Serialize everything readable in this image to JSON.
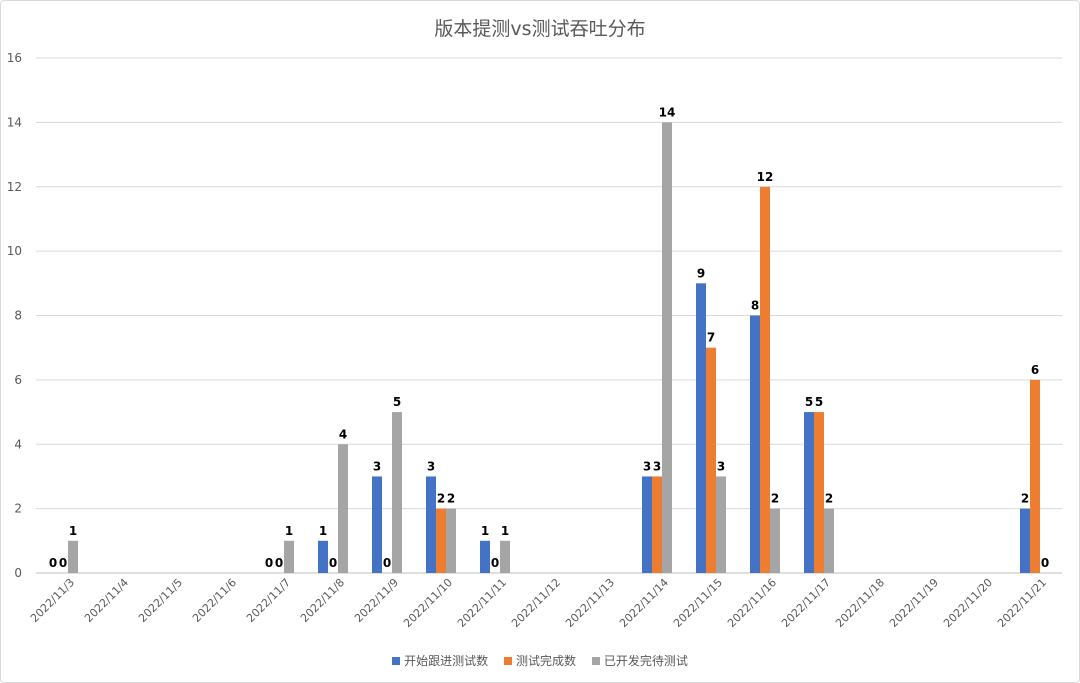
{
  "chart_data": {
    "type": "bar",
    "title": "版本提测vs测试吞吐分布",
    "categories": [
      "2022/11/3",
      "2022/11/4",
      "2022/11/5",
      "2022/11/6",
      "2022/11/7",
      "2022/11/8",
      "2022/11/9",
      "2022/11/10",
      "2022/11/11",
      "2022/11/12",
      "2022/11/13",
      "2022/11/14",
      "2022/11/15",
      "2022/11/16",
      "2022/11/17",
      "2022/11/18",
      "2022/11/19",
      "2022/11/20",
      "2022/11/21"
    ],
    "series": [
      {
        "name": "开始跟进测试数",
        "color": "#4472C4",
        "values": [
          0,
          null,
          null,
          null,
          0,
          1,
          3,
          3,
          1,
          null,
          null,
          3,
          9,
          8,
          5,
          null,
          null,
          null,
          2
        ]
      },
      {
        "name": "测试完成数",
        "color": "#ED7D31",
        "values": [
          0,
          null,
          null,
          null,
          0,
          0,
          0,
          2,
          0,
          null,
          null,
          3,
          7,
          12,
          5,
          null,
          null,
          null,
          6
        ]
      },
      {
        "name": "已开发完待测试",
        "color": "#A5A5A5",
        "values": [
          1,
          null,
          null,
          null,
          1,
          4,
          5,
          2,
          1,
          null,
          null,
          14,
          3,
          2,
          2,
          null,
          null,
          null,
          0
        ]
      }
    ],
    "ylim": [
      0,
      16
    ],
    "yticks": [
      0,
      2,
      4,
      6,
      8,
      10,
      12,
      14,
      16
    ],
    "grid": true,
    "legend_position": "bottom"
  }
}
